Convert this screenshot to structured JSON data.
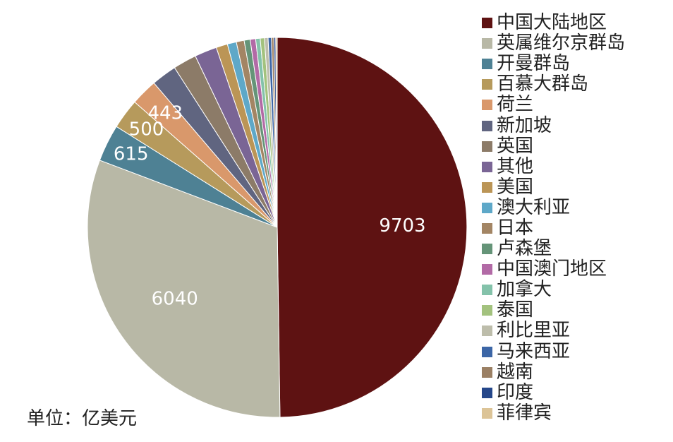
{
  "unit_note": "单位：亿美元",
  "chart_data": {
    "type": "pie",
    "title": "",
    "legend_position": "right",
    "slices": [
      {
        "name": "中国大陆地区",
        "value": 9703,
        "color": "#5e1212",
        "label": "9703"
      },
      {
        "name": "英属维尔京群岛",
        "value": 6040,
        "color": "#b8b8a6",
        "label": "6040"
      },
      {
        "name": "开曼群岛",
        "value": 615,
        "color": "#4e8194",
        "label": "615"
      },
      {
        "name": "百慕大群岛",
        "value": 500,
        "color": "#b69a5c",
        "label": "500"
      },
      {
        "name": "荷兰",
        "value": 443,
        "color": "#d9986b",
        "label": "443"
      },
      {
        "name": "新加坡",
        "value": 420,
        "color": "#606580",
        "label": ""
      },
      {
        "name": "英国",
        "value": 390,
        "color": "#8c7b68",
        "label": ""
      },
      {
        "name": "其他",
        "value": 370,
        "color": "#7a6595",
        "label": ""
      },
      {
        "name": "美国",
        "value": 190,
        "color": "#bb9556",
        "label": ""
      },
      {
        "name": "澳大利亚",
        "value": 150,
        "color": "#5ea8c8",
        "label": ""
      },
      {
        "name": "日本",
        "value": 130,
        "color": "#a38564",
        "label": ""
      },
      {
        "name": "卢森堡",
        "value": 100,
        "color": "#659478",
        "label": ""
      },
      {
        "name": "中国澳门地区",
        "value": 90,
        "color": "#b26aa6",
        "label": ""
      },
      {
        "name": "加拿大",
        "value": 75,
        "color": "#84c2aa",
        "label": ""
      },
      {
        "name": "泰国",
        "value": 70,
        "color": "#a3c27e",
        "label": ""
      },
      {
        "name": "利比里亚",
        "value": 60,
        "color": "#bdbdab",
        "label": ""
      },
      {
        "name": "马来西亚",
        "value": 55,
        "color": "#3c66a6",
        "label": ""
      },
      {
        "name": "越南",
        "value": 40,
        "color": "#9b8064",
        "label": ""
      },
      {
        "name": "印度",
        "value": 30,
        "color": "#25478a",
        "label": ""
      },
      {
        "name": "菲律宾",
        "value": 25,
        "color": "#dcc497",
        "label": ""
      }
    ]
  }
}
